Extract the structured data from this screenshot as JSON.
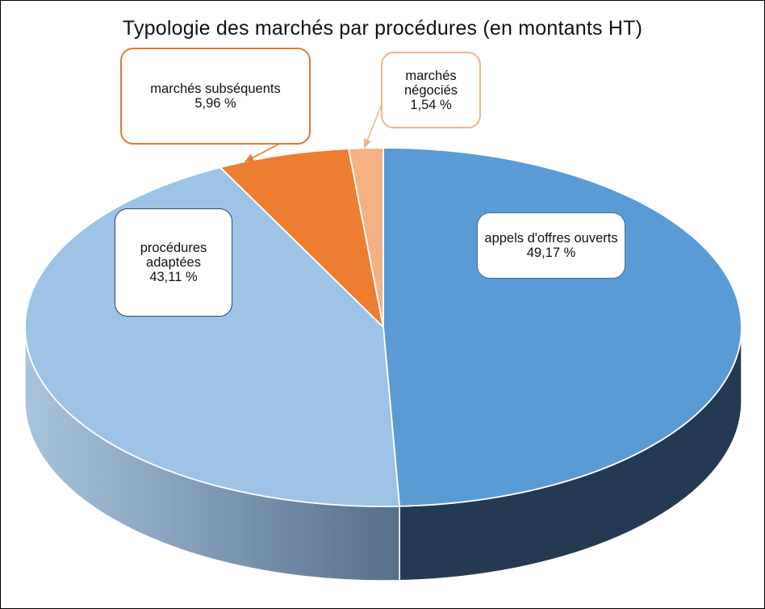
{
  "chart_data": {
    "type": "pie",
    "title": "Typologie des marchés par procédures (en montants HT)",
    "style": "3d",
    "slices": [
      {
        "label": "appels d'offres ouverts",
        "value": 49.17,
        "value_text": "49,17 %",
        "color": "#5b9bd5",
        "side_color": "#243a52"
      },
      {
        "label": "procédures adaptées",
        "value": 43.11,
        "value_text": "43,11 %",
        "color": "#9dc3e6",
        "side_color": "#7e9dba"
      },
      {
        "label": "marchés subséquents",
        "value": 5.96,
        "value_text": "5,96 %",
        "color": "#ed7d31",
        "side_color": "#a0541f"
      },
      {
        "label": "marchés négociés",
        "value": 1.54,
        "value_text": "1,54 %",
        "color": "#f4b183",
        "side_color": "#b78260"
      }
    ]
  }
}
